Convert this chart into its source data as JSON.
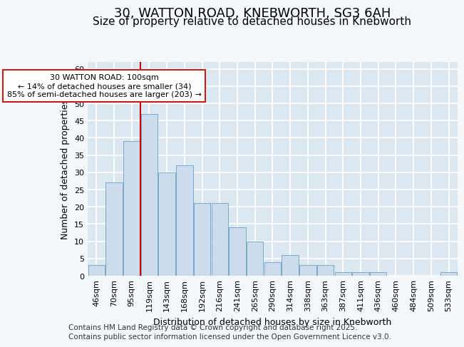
{
  "title_line1": "30, WATTON ROAD, KNEBWORTH, SG3 6AH",
  "title_line2": "Size of property relative to detached houses in Knebworth",
  "xlabel": "Distribution of detached houses by size in Knebworth",
  "ylabel": "Number of detached properties",
  "categories": [
    "46sqm",
    "70sqm",
    "95sqm",
    "119sqm",
    "143sqm",
    "168sqm",
    "192sqm",
    "216sqm",
    "241sqm",
    "265sqm",
    "290sqm",
    "314sqm",
    "338sqm",
    "363sqm",
    "387sqm",
    "411sqm",
    "436sqm",
    "460sqm",
    "484sqm",
    "509sqm",
    "533sqm"
  ],
  "values": [
    3,
    27,
    39,
    47,
    30,
    32,
    21,
    21,
    14,
    10,
    4,
    6,
    3,
    3,
    1,
    1,
    1,
    0,
    0,
    0,
    1
  ],
  "bar_color": "#ccdcec",
  "bar_edge_color": "#7aaac8",
  "vline_x": 2.5,
  "vline_color": "#cc0000",
  "annotation_text": "30 WATTON ROAD: 100sqm\n← 14% of detached houses are smaller (34)\n85% of semi-detached houses are larger (203) →",
  "annotation_box_color": "#ffffff",
  "annotation_box_edge": "#cc0000",
  "ylim": [
    0,
    62
  ],
  "yticks": [
    0,
    5,
    10,
    15,
    20,
    25,
    30,
    35,
    40,
    45,
    50,
    55,
    60
  ],
  "plot_bg_color": "#dce8f0",
  "fig_bg_color": "#f5f8fb",
  "grid_color": "#ffffff",
  "footer_line1": "Contains HM Land Registry data © Crown copyright and database right 2025.",
  "footer_line2": "Contains public sector information licensed under the Open Government Licence v3.0.",
  "title_fontsize": 13,
  "subtitle_fontsize": 11,
  "tick_fontsize": 8,
  "ylabel_fontsize": 9,
  "xlabel_fontsize": 9,
  "annotation_fontsize": 8,
  "footer_fontsize": 7.5
}
